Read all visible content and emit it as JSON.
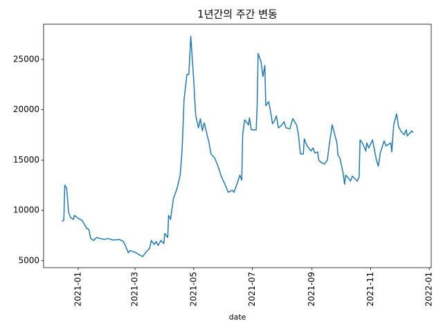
{
  "chart_data": {
    "type": "line",
    "title": "1년간의 주간 변동",
    "xlabel": "date",
    "x": [
      "2020-12-15",
      "2020-12-17",
      "2020-12-18",
      "2020-12-20",
      "2020-12-22",
      "2020-12-24",
      "2020-12-27",
      "2020-12-28",
      "2021-01-01",
      "2021-01-05",
      "2021-01-08",
      "2021-01-10",
      "2021-01-12",
      "2021-01-14",
      "2021-01-17",
      "2021-01-20",
      "2021-01-24",
      "2021-01-28",
      "2021-02-01",
      "2021-02-06",
      "2021-02-13",
      "2021-02-17",
      "2021-02-19",
      "2021-02-22",
      "2021-02-24",
      "2021-03-02",
      "2021-03-05",
      "2021-03-09",
      "2021-03-12",
      "2021-03-16",
      "2021-03-18",
      "2021-03-21",
      "2021-03-23",
      "2021-03-25",
      "2021-03-28",
      "2021-03-31",
      "2021-04-01",
      "2021-04-04",
      "2021-04-05",
      "2021-04-07",
      "2021-04-10",
      "2021-04-12",
      "2021-04-14",
      "2021-04-17",
      "2021-04-19",
      "2021-04-21",
      "2021-04-24",
      "2021-04-26",
      "2021-04-28",
      "2021-05-01",
      "2021-05-03",
      "2021-05-06",
      "2021-05-08",
      "2021-05-10",
      "2021-05-12",
      "2021-05-15",
      "2021-05-17",
      "2021-05-19",
      "2021-05-23",
      "2021-05-27",
      "2021-05-30",
      "2021-06-02",
      "2021-06-06",
      "2021-06-10",
      "2021-06-12",
      "2021-06-15",
      "2021-06-18",
      "2021-06-20",
      "2021-06-21",
      "2021-06-23",
      "2021-06-27",
      "2021-06-28",
      "2021-06-30",
      "2021-07-05",
      "2021-07-06",
      "2021-07-07",
      "2021-07-10",
      "2021-07-12",
      "2021-07-14",
      "2021-07-15",
      "2021-07-18",
      "2021-07-20",
      "2021-07-22",
      "2021-07-24",
      "2021-07-26",
      "2021-07-28",
      "2021-07-31",
      "2021-08-03",
      "2021-08-05",
      "2021-08-09",
      "2021-08-12",
      "2021-08-16",
      "2021-08-18",
      "2021-08-20",
      "2021-08-23",
      "2021-08-24",
      "2021-08-27",
      "2021-08-31",
      "2021-09-02",
      "2021-09-04",
      "2021-09-07",
      "2021-09-08",
      "2021-09-10",
      "2021-09-14",
      "2021-09-17",
      "2021-09-19",
      "2021-09-22",
      "2021-09-27",
      "2021-09-28",
      "2021-09-30",
      "2021-10-03",
      "2021-10-05",
      "2021-10-06",
      "2021-10-09",
      "2021-10-11",
      "2021-10-13",
      "2021-10-18",
      "2021-10-20",
      "2021-10-21",
      "2021-10-24",
      "2021-10-27",
      "2021-10-28",
      "2021-10-30",
      "2021-11-03",
      "2021-11-07",
      "2021-11-09",
      "2021-11-11",
      "2021-11-15",
      "2021-11-17",
      "2021-11-22",
      "2021-11-23",
      "2021-11-25",
      "2021-11-28",
      "2021-11-30",
      "2021-12-03",
      "2021-12-06",
      "2021-12-08",
      "2021-12-09",
      "2021-12-14",
      "2021-12-15"
    ],
    "series": [
      {
        "color": "#1f77b4",
        "values": [
          8900,
          9000,
          12500,
          12200,
          9800,
          9300,
          9100,
          9500,
          9200,
          9000,
          8500,
          8200,
          8100,
          7200,
          7000,
          7300,
          7200,
          7100,
          7200,
          7050,
          7100,
          6900,
          6500,
          5800,
          6000,
          5800,
          5600,
          5400,
          5800,
          6200,
          7000,
          6600,
          6900,
          6500,
          7000,
          6700,
          7700,
          7300,
          9500,
          9100,
          11200,
          11700,
          12300,
          13500,
          16000,
          21000,
          23500,
          23500,
          27300,
          23000,
          19500,
          18200,
          19100,
          17900,
          18700,
          17500,
          16700,
          15600,
          15200,
          14200,
          13300,
          12700,
          11800,
          12000,
          11800,
          12600,
          13500,
          13000,
          17500,
          19000,
          18500,
          19200,
          18000,
          18000,
          20400,
          25600,
          24800,
          23300,
          24400,
          20400,
          20800,
          19800,
          18600,
          18900,
          19400,
          18200,
          18400,
          18800,
          18200,
          18100,
          19100,
          18500,
          17500,
          15600,
          15600,
          17100,
          16400,
          15900,
          16200,
          15700,
          15800,
          15000,
          14800,
          14600,
          15000,
          16500,
          18500,
          16700,
          15500,
          15200,
          13900,
          12600,
          13500,
          13200,
          12900,
          13400,
          12900,
          13300,
          17000,
          16600,
          15900,
          16700,
          16200,
          17000,
          15000,
          14400,
          15700,
          16900,
          16400,
          16700,
          15800,
          18500,
          19600,
          18300,
          17800,
          17500,
          18000,
          17400,
          17900,
          17700
        ]
      }
    ],
    "xlim": [
      "2020-11-26",
      "2022-01-03"
    ],
    "xticks": [
      "2021-01",
      "2021-03",
      "2021-05",
      "2021-07",
      "2021-09",
      "2021-11",
      "2022-01"
    ],
    "ylim": [
      4300,
      28500
    ],
    "yticks": [
      5000,
      10000,
      15000,
      20000,
      25000
    ]
  }
}
